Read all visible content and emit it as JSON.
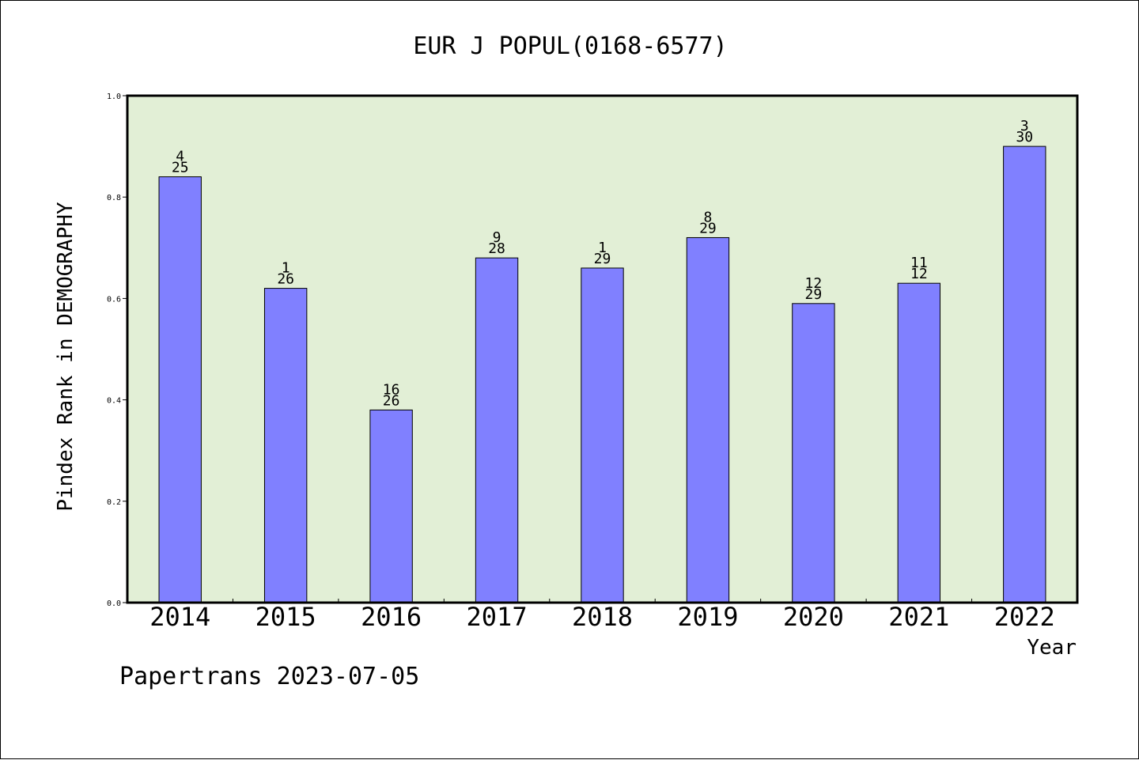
{
  "chart_data": {
    "type": "bar",
    "title": "EUR J POPUL(0168-6577)",
    "xlabel": "Year",
    "ylabel": "Pindex Rank in DEMOGRAPHY",
    "categories": [
      "2014",
      "2015",
      "2016",
      "2017",
      "2018",
      "2019",
      "2020",
      "2021",
      "2022"
    ],
    "values": [
      0.84,
      0.62,
      0.38,
      0.68,
      0.66,
      0.72,
      0.59,
      0.63,
      0.9
    ],
    "rank_labels": [
      "4",
      "1",
      "16",
      "9",
      "1",
      "8",
      "12",
      "11",
      "3"
    ],
    "total_labels": [
      "25",
      "26",
      "26",
      "28",
      "29",
      "29",
      "29",
      "12",
      "30"
    ],
    "ylim": [
      0,
      1.0
    ],
    "yticks": [
      "0.0",
      "0.2",
      "0.4",
      "0.6",
      "0.8",
      "1.0"
    ],
    "grid": false,
    "colors": {
      "bar": "#8080ff",
      "plot_background": "#e2efd6",
      "axis": "#000000"
    }
  },
  "footer": "Papertrans 2023-07-05"
}
